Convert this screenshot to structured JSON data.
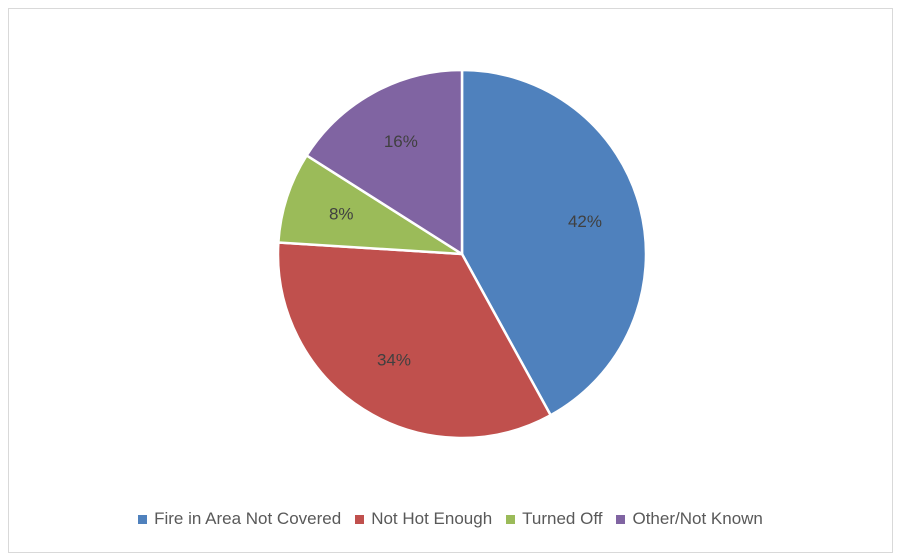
{
  "chart_data": {
    "type": "pie",
    "title": "",
    "categories": [
      "Fire in Area Not Covered",
      "Not Hot Enough",
      "Turned Off",
      "Other/Not Known"
    ],
    "values": [
      42,
      34,
      8,
      16
    ],
    "labels": [
      "42%",
      "34%",
      "8%",
      "16%"
    ],
    "colors": [
      "#4f81bd",
      "#c0504d",
      "#9bbb59",
      "#8064a2"
    ],
    "legend_position": "bottom",
    "start_angle": "12 o'clock, clockwise"
  }
}
